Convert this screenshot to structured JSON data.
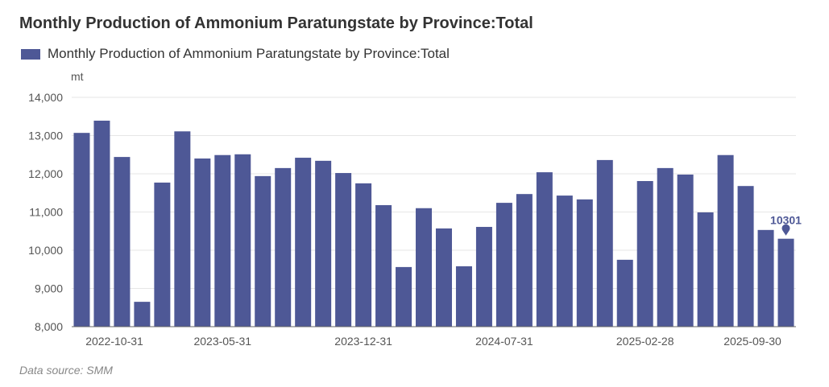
{
  "chart_data": {
    "type": "bar",
    "title": "Monthly Production of Ammonium Paratungstate by Province:Total",
    "legend": [
      "Monthly Production of Ammonium Paratungstate by Province:Total"
    ],
    "legend_position": "top-left",
    "ylabel": "mt",
    "ylim": [
      8000,
      14000
    ],
    "yticks": [
      "8,000",
      "9,000",
      "10,000",
      "11,000",
      "12,000",
      "13,000",
      "14,000"
    ],
    "grid": true,
    "color": "#4e5896",
    "categories": [
      "2022-10-31",
      "2022-11-30",
      "2022-12-31",
      "2023-01-31",
      "2023-02-28",
      "2023-03-31",
      "2023-04-30",
      "2023-05-31",
      "2023-06-30",
      "2023-07-31",
      "2023-08-31",
      "2023-09-30",
      "2023-10-31",
      "2023-11-30",
      "2023-12-31",
      "2024-01-31",
      "2024-02-29",
      "2024-03-31",
      "2024-04-30",
      "2024-05-31",
      "2024-06-30",
      "2024-07-31",
      "2024-08-31",
      "2024-09-30",
      "2024-10-31",
      "2024-11-30",
      "2024-12-31",
      "2025-01-31",
      "2025-02-28",
      "2025-03-31",
      "2025-04-30",
      "2025-05-31",
      "2025-06-30",
      "2025-07-31",
      "2025-08-31",
      "2025-09-30"
    ],
    "shown_xticks": [
      "2022-10-31",
      "2023-05-31",
      "2023-12-31",
      "2024-07-31",
      "2025-02-28",
      "2025-09-30"
    ],
    "values": [
      13070,
      13390,
      12440,
      8650,
      11770,
      13110,
      12400,
      12490,
      12510,
      11940,
      12150,
      12420,
      12340,
      12020,
      11750,
      11180,
      9560,
      11100,
      10570,
      9580,
      10610,
      11240,
      11470,
      12040,
      11430,
      11330,
      12360,
      9750,
      11810,
      12150,
      11980,
      10990,
      12490,
      11680,
      10530,
      10301
    ],
    "annotation": "10301"
  },
  "source": "Data source:  SMM"
}
